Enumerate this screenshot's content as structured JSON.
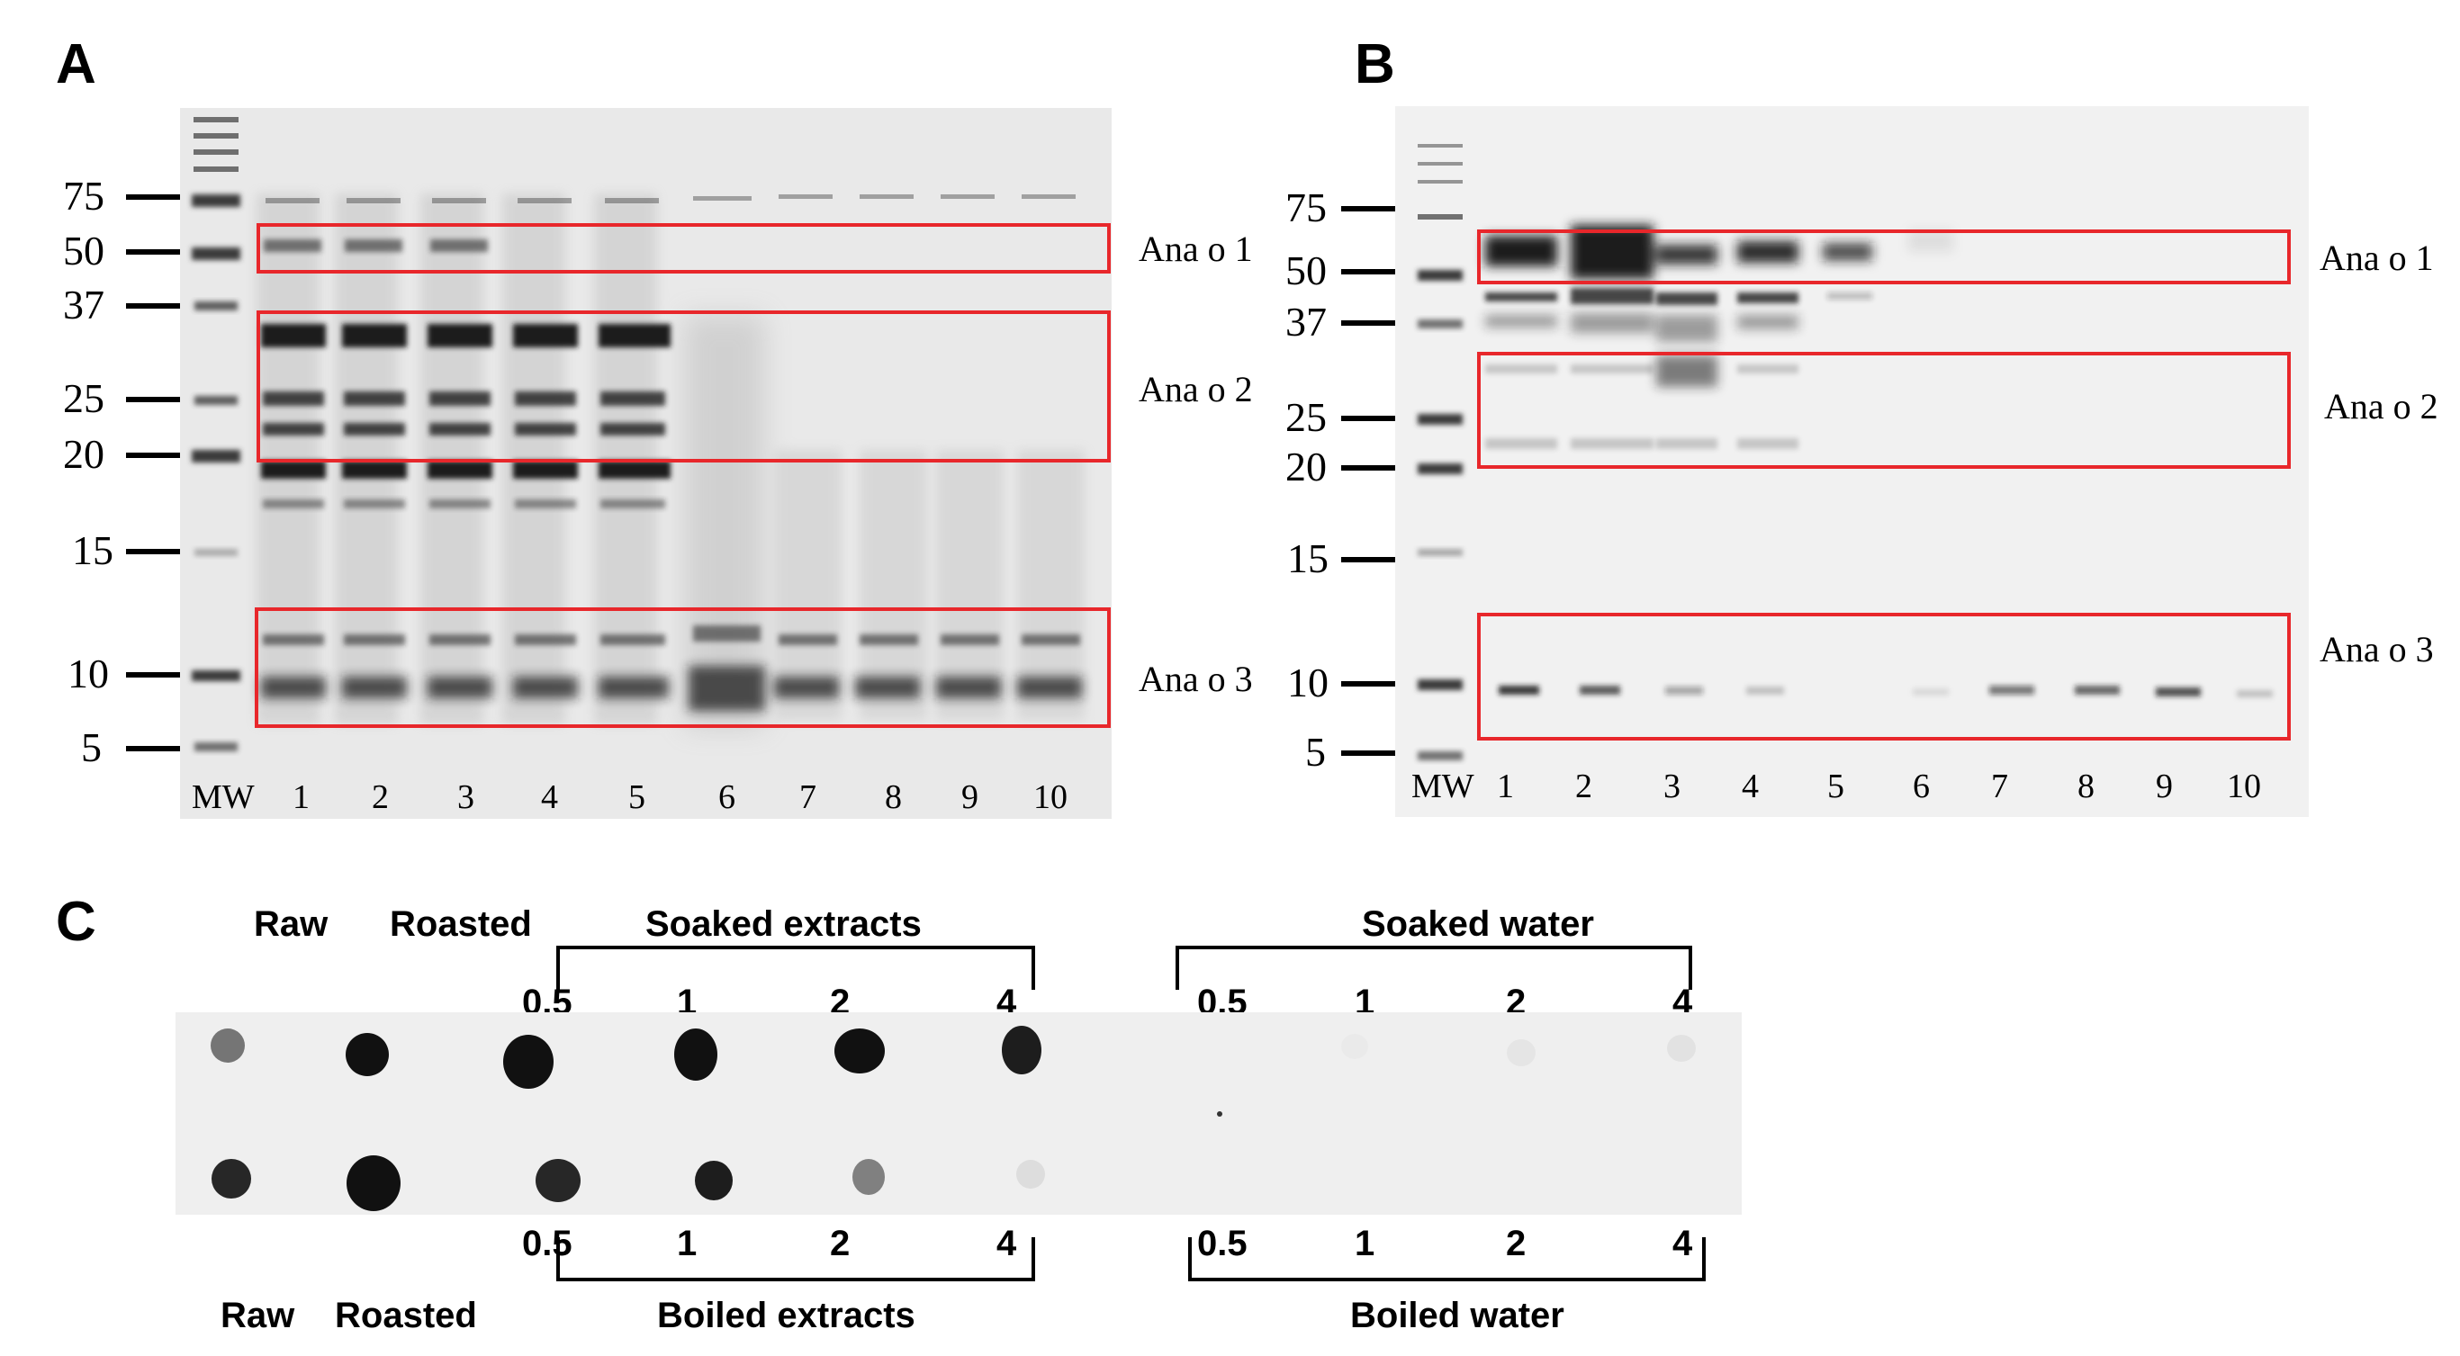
{
  "panels": {
    "a": {
      "letter": "A",
      "mw_markers": [
        "75",
        "50",
        "37",
        "25",
        "20",
        "15",
        "10",
        "5"
      ],
      "lanes": [
        "MW",
        "1",
        "2",
        "3",
        "4",
        "5",
        "6",
        "7",
        "8",
        "9",
        "10"
      ],
      "allergens": [
        "Ana o 1",
        "Ana o 2",
        "Ana o 3"
      ]
    },
    "b": {
      "letter": "B",
      "mw_markers": [
        "75",
        "50",
        "37",
        "25",
        "20",
        "15",
        "10",
        "5"
      ],
      "lanes": [
        "MW",
        "1",
        "2",
        "3",
        "4",
        "5",
        "6",
        "7",
        "8",
        "9",
        "10"
      ],
      "allergens": [
        "Ana o 1",
        "Ana o 2",
        "Ana o 3"
      ]
    },
    "c": {
      "letter": "C",
      "top": {
        "raw": "Raw",
        "roasted": "Roasted",
        "group1_title": "Soaked extracts",
        "group1_conc": [
          "0.5",
          "1",
          "2",
          "4"
        ],
        "group2_title": "Soaked water",
        "group2_conc": [
          "0.5",
          "1",
          "2",
          "4"
        ]
      },
      "bottom": {
        "raw": "Raw",
        "roasted": "Roasted",
        "group1_title": "Boiled extracts",
        "group1_conc": [
          "0.5",
          "1",
          "2",
          "4"
        ],
        "group2_title": "Boiled water",
        "group2_conc": [
          "0.5",
          "1",
          "2",
          "4"
        ]
      },
      "dot_intensity": {
        "top_row": [
          0.55,
          1.0,
          1.0,
          1.0,
          1.0,
          0.95,
          0.0,
          0.02,
          0.04,
          0.05
        ],
        "bottom_row": [
          0.9,
          1.0,
          0.9,
          0.95,
          0.5,
          0.08,
          0.0,
          0.0,
          0.0,
          0.0
        ]
      }
    }
  },
  "colors": {
    "box": "#e8272b",
    "band": "#1a1a1a"
  }
}
